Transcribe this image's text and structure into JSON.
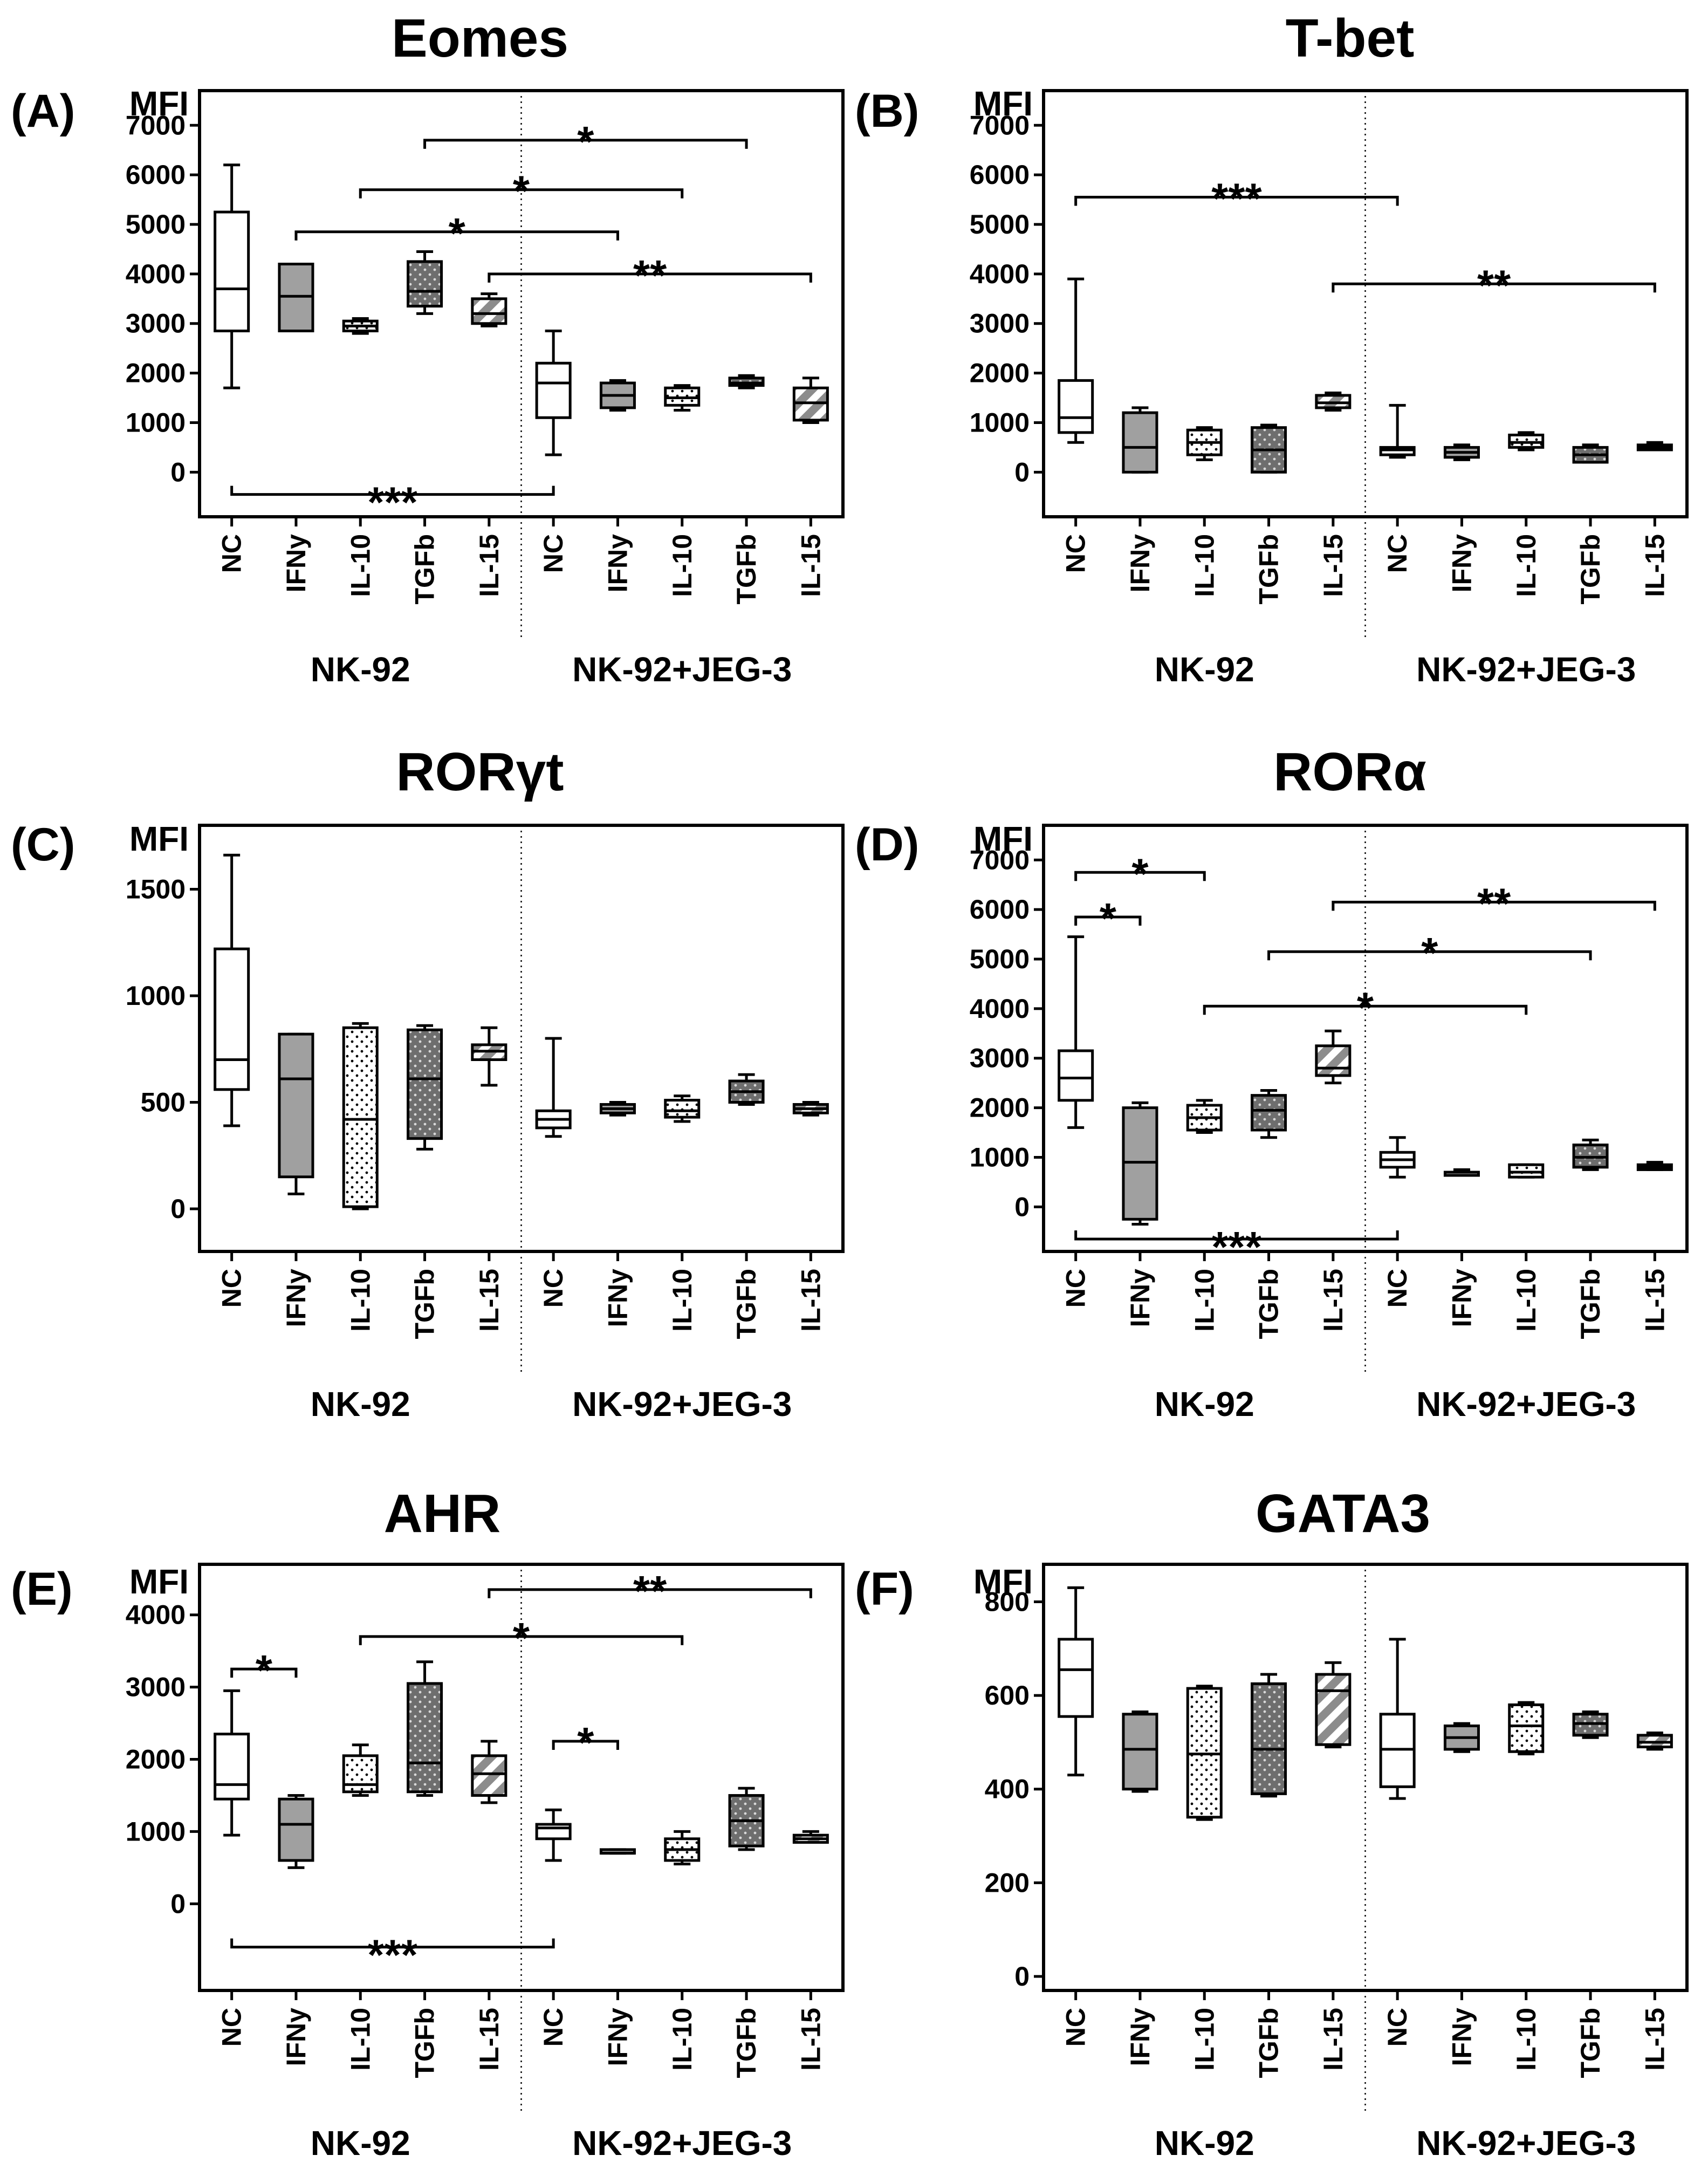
{
  "figure": {
    "groups": [
      "NK-92",
      "NK-92+JEG-3"
    ],
    "categories": [
      "NC",
      "IFNy",
      "IL-10",
      "TGFb",
      "IL-15",
      "NC",
      "IFNy",
      "IL-10",
      "TGFb",
      "IL-15"
    ],
    "fill_styles": [
      "white",
      "gray",
      "dots",
      "darkdots",
      "stripes",
      "white",
      "gray",
      "dots",
      "darkdots",
      "stripes"
    ],
    "colors": {
      "gray": "#a0a0a0",
      "dark": "#6e6e6e",
      "stripe": "#8c8c8c",
      "line": "#000000",
      "background": "#ffffff"
    }
  },
  "chart_data": [
    {
      "type": "box",
      "panel": "(A)",
      "title": "Eomes",
      "ylabel": "MFI",
      "ylim": [
        -900,
        7700
      ],
      "yticks": [
        0,
        1000,
        2000,
        3000,
        4000,
        5000,
        6000,
        7000
      ],
      "boxes": [
        {
          "min": 1700,
          "q1": 2850,
          "median": 3700,
          "q3": 5250,
          "max": 6200
        },
        {
          "min": 2850,
          "q1": 2850,
          "median": 3550,
          "q3": 4200,
          "max": 4200
        },
        {
          "min": 2800,
          "q1": 2850,
          "median": 2950,
          "q3": 3050,
          "max": 3100
        },
        {
          "min": 3200,
          "q1": 3350,
          "median": 3650,
          "q3": 4250,
          "max": 4450
        },
        {
          "min": 2950,
          "q1": 3000,
          "median": 3200,
          "q3": 3500,
          "max": 3600
        },
        {
          "min": 350,
          "q1": 1100,
          "median": 1800,
          "q3": 2200,
          "max": 2850
        },
        {
          "min": 1250,
          "q1": 1300,
          "median": 1550,
          "q3": 1800,
          "max": 1850
        },
        {
          "min": 1250,
          "q1": 1350,
          "median": 1500,
          "q3": 1700,
          "max": 1750
        },
        {
          "min": 1700,
          "q1": 1750,
          "median": 1800,
          "q3": 1900,
          "max": 1950
        },
        {
          "min": 1000,
          "q1": 1050,
          "median": 1400,
          "q3": 1700,
          "max": 1900
        }
      ],
      "sig": [
        {
          "from": 3,
          "to": 8,
          "label": "*",
          "y": 6700,
          "dir": "down"
        },
        {
          "from": 2,
          "to": 7,
          "label": "*",
          "y": 5700,
          "dir": "down"
        },
        {
          "from": 1,
          "to": 6,
          "label": "*",
          "y": 4850,
          "dir": "down"
        },
        {
          "from": 4,
          "to": 9,
          "label": "**",
          "y": 4000,
          "dir": "down"
        },
        {
          "from": 0,
          "to": 5,
          "label": "***",
          "y": -450,
          "dir": "up"
        }
      ]
    },
    {
      "type": "box",
      "panel": "(B)",
      "title": "T-bet",
      "ylabel": "MFI",
      "ylim": [
        -900,
        7700
      ],
      "yticks": [
        0,
        1000,
        2000,
        3000,
        4000,
        5000,
        6000,
        7000
      ],
      "boxes": [
        {
          "min": 600,
          "q1": 800,
          "median": 1100,
          "q3": 1850,
          "max": 3900
        },
        {
          "min": 0,
          "q1": 0,
          "median": 500,
          "q3": 1200,
          "max": 1300
        },
        {
          "min": 250,
          "q1": 350,
          "median": 600,
          "q3": 850,
          "max": 900
        },
        {
          "min": 0,
          "q1": 0,
          "median": 450,
          "q3": 900,
          "max": 950
        },
        {
          "min": 1250,
          "q1": 1300,
          "median": 1400,
          "q3": 1550,
          "max": 1600
        },
        {
          "min": 300,
          "q1": 350,
          "median": 450,
          "q3": 500,
          "max": 1350
        },
        {
          "min": 250,
          "q1": 300,
          "median": 400,
          "q3": 500,
          "max": 550
        },
        {
          "min": 450,
          "q1": 500,
          "median": 600,
          "q3": 750,
          "max": 800
        },
        {
          "min": 200,
          "q1": 200,
          "median": 350,
          "q3": 500,
          "max": 550
        },
        {
          "min": 450,
          "q1": 450,
          "median": 500,
          "q3": 550,
          "max": 600
        }
      ],
      "sig": [
        {
          "from": 0,
          "to": 5,
          "label": "***",
          "y": 5550,
          "dir": "down"
        },
        {
          "from": 4,
          "to": 9,
          "label": "**",
          "y": 3800,
          "dir": "down"
        }
      ]
    },
    {
      "type": "box",
      "panel": "(C)",
      "title": "RORγt",
      "ylabel": "MFI",
      "ylim": [
        -200,
        1800
      ],
      "yticks": [
        0,
        500,
        1000,
        1500
      ],
      "boxes": [
        {
          "min": 390,
          "q1": 560,
          "median": 700,
          "q3": 1220,
          "max": 1660
        },
        {
          "min": 70,
          "q1": 150,
          "median": 610,
          "q3": 820,
          "max": 820
        },
        {
          "min": 0,
          "q1": 10,
          "median": 420,
          "q3": 850,
          "max": 870
        },
        {
          "min": 280,
          "q1": 330,
          "median": 610,
          "q3": 840,
          "max": 860
        },
        {
          "min": 580,
          "q1": 700,
          "median": 740,
          "q3": 770,
          "max": 850
        },
        {
          "min": 340,
          "q1": 380,
          "median": 420,
          "q3": 460,
          "max": 800
        },
        {
          "min": 440,
          "q1": 450,
          "median": 470,
          "q3": 490,
          "max": 500
        },
        {
          "min": 410,
          "q1": 430,
          "median": 460,
          "q3": 510,
          "max": 530
        },
        {
          "min": 490,
          "q1": 500,
          "median": 550,
          "q3": 600,
          "max": 630
        },
        {
          "min": 440,
          "q1": 450,
          "median": 470,
          "q3": 490,
          "max": 500
        }
      ],
      "sig": []
    },
    {
      "type": "box",
      "panel": "(D)",
      "title": "RORα",
      "ylabel": "MFI",
      "ylim": [
        -900,
        7700
      ],
      "yticks": [
        0,
        1000,
        2000,
        3000,
        4000,
        5000,
        6000,
        7000
      ],
      "boxes": [
        {
          "min": 1600,
          "q1": 2150,
          "median": 2600,
          "q3": 3150,
          "max": 5450
        },
        {
          "min": -350,
          "q1": -250,
          "median": 900,
          "q3": 2000,
          "max": 2100
        },
        {
          "min": 1500,
          "q1": 1550,
          "median": 1800,
          "q3": 2050,
          "max": 2150
        },
        {
          "min": 1400,
          "q1": 1550,
          "median": 1950,
          "q3": 2250,
          "max": 2350
        },
        {
          "min": 2500,
          "q1": 2650,
          "median": 2800,
          "q3": 3250,
          "max": 3550
        },
        {
          "min": 600,
          "q1": 800,
          "median": 950,
          "q3": 1100,
          "max": 1400
        },
        {
          "min": 650,
          "q1": 650,
          "median": 700,
          "q3": 700,
          "max": 750
        },
        {
          "min": 600,
          "q1": 600,
          "median": 700,
          "q3": 850,
          "max": 850
        },
        {
          "min": 750,
          "q1": 800,
          "median": 1000,
          "q3": 1250,
          "max": 1350
        },
        {
          "min": 750,
          "q1": 750,
          "median": 800,
          "q3": 850,
          "max": 900
        }
      ],
      "sig": [
        {
          "from": 0,
          "to": 2,
          "label": "*",
          "y": 6750,
          "dir": "down"
        },
        {
          "from": 0,
          "to": 1,
          "label": "*",
          "y": 5850,
          "dir": "down"
        },
        {
          "from": 4,
          "to": 9,
          "label": "**",
          "y": 6150,
          "dir": "down"
        },
        {
          "from": 3,
          "to": 8,
          "label": "*",
          "y": 5150,
          "dir": "down"
        },
        {
          "from": 2,
          "to": 7,
          "label": "*",
          "y": 4050,
          "dir": "down"
        },
        {
          "from": 0,
          "to": 5,
          "label": "***",
          "y": -650,
          "dir": "up"
        }
      ]
    },
    {
      "type": "box",
      "panel": "(E)",
      "title": "AHR",
      "ylabel": "MFI",
      "ylim": [
        -1200,
        4700
      ],
      "yticks": [
        0,
        1000,
        2000,
        3000,
        4000
      ],
      "boxes": [
        {
          "min": 950,
          "q1": 1450,
          "median": 1650,
          "q3": 2350,
          "max": 2950
        },
        {
          "min": 500,
          "q1": 600,
          "median": 1100,
          "q3": 1450,
          "max": 1500
        },
        {
          "min": 1500,
          "q1": 1550,
          "median": 1650,
          "q3": 2050,
          "max": 2200
        },
        {
          "min": 1500,
          "q1": 1550,
          "median": 1950,
          "q3": 3050,
          "max": 3350
        },
        {
          "min": 1400,
          "q1": 1500,
          "median": 1800,
          "q3": 2050,
          "max": 2250
        },
        {
          "min": 600,
          "q1": 900,
          "median": 1050,
          "q3": 1100,
          "max": 1300
        },
        {
          "min": 700,
          "q1": 700,
          "median": 700,
          "q3": 750,
          "max": 750
        },
        {
          "min": 550,
          "q1": 600,
          "median": 750,
          "q3": 900,
          "max": 1000
        },
        {
          "min": 750,
          "q1": 800,
          "median": 1150,
          "q3": 1500,
          "max": 1600
        },
        {
          "min": 850,
          "q1": 850,
          "median": 900,
          "q3": 950,
          "max": 1000
        }
      ],
      "sig": [
        {
          "from": 0,
          "to": 1,
          "label": "*",
          "y": 3250,
          "dir": "down"
        },
        {
          "from": 2,
          "to": 7,
          "label": "*",
          "y": 3700,
          "dir": "down"
        },
        {
          "from": 4,
          "to": 9,
          "label": "**",
          "y": 4350,
          "dir": "down"
        },
        {
          "from": 5,
          "to": 6,
          "label": "*",
          "y": 2250,
          "dir": "down"
        },
        {
          "from": 0,
          "to": 5,
          "label": "***",
          "y": -600,
          "dir": "up"
        }
      ]
    },
    {
      "type": "box",
      "panel": "(F)",
      "title": "GATA3",
      "ylabel": "MFI",
      "ylim": [
        -30,
        880
      ],
      "yticks": [
        0,
        200,
        400,
        600,
        800
      ],
      "boxes": [
        {
          "min": 430,
          "q1": 555,
          "median": 655,
          "q3": 720,
          "max": 830
        },
        {
          "min": 395,
          "q1": 400,
          "median": 485,
          "q3": 560,
          "max": 565
        },
        {
          "min": 335,
          "q1": 340,
          "median": 475,
          "q3": 615,
          "max": 620
        },
        {
          "min": 385,
          "q1": 390,
          "median": 485,
          "q3": 625,
          "max": 645
        },
        {
          "min": 490,
          "q1": 495,
          "median": 610,
          "q3": 645,
          "max": 670
        },
        {
          "min": 380,
          "q1": 405,
          "median": 485,
          "q3": 560,
          "max": 720
        },
        {
          "min": 480,
          "q1": 485,
          "median": 510,
          "q3": 535,
          "max": 540
        },
        {
          "min": 475,
          "q1": 480,
          "median": 535,
          "q3": 580,
          "max": 585
        },
        {
          "min": 510,
          "q1": 515,
          "median": 540,
          "q3": 560,
          "max": 565
        },
        {
          "min": 485,
          "q1": 490,
          "median": 500,
          "q3": 515,
          "max": 520
        }
      ],
      "sig": []
    }
  ]
}
